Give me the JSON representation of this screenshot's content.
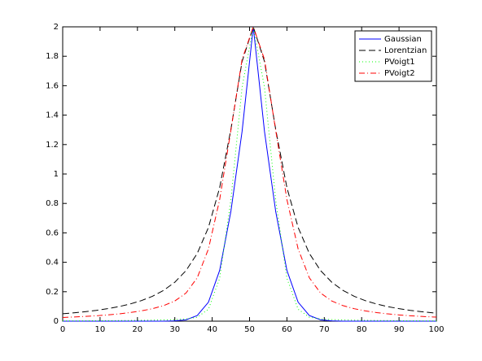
{
  "chart_data": {
    "type": "line",
    "x": [
      0,
      3,
      6,
      9,
      12,
      15,
      18,
      21,
      24,
      27,
      30,
      33,
      36,
      39,
      42,
      45,
      48,
      51,
      54,
      57,
      60,
      63,
      66,
      69,
      72,
      75,
      78,
      81,
      84,
      87,
      90,
      93,
      96,
      99,
      100
    ],
    "series": [
      {
        "name": "Gaussian",
        "color": "#0000ff",
        "dash": "",
        "values": [
          0,
          0,
          0,
          0,
          0,
          0,
          0,
          0,
          0,
          0.0003,
          0.0018,
          0.0092,
          0.0385,
          0.129,
          0.345,
          0.745,
          1.289,
          2,
          1.289,
          0.745,
          0.345,
          0.129,
          0.0385,
          0.0092,
          0.0018,
          0.0003,
          0,
          0,
          0,
          0,
          0,
          0,
          0,
          0,
          0
        ]
      },
      {
        "name": "Lorentzian",
        "color": "#000000",
        "dash": "8,4",
        "values": [
          0.0504,
          0.0567,
          0.0643,
          0.0734,
          0.0847,
          0.0987,
          0.1163,
          0.1391,
          0.1689,
          0.2091,
          0.2646,
          0.3437,
          0.4602,
          0.6365,
          0.9072,
          1.3026,
          1.764,
          2,
          1.764,
          1.3026,
          0.9072,
          0.6365,
          0.4602,
          0.3437,
          0.2646,
          0.2091,
          0.1689,
          0.1391,
          0.1163,
          0.0987,
          0.0847,
          0.0734,
          0.0643,
          0.0567,
          0.0545
        ]
      },
      {
        "name": "PVoigt1",
        "color": "#00ff00",
        "dash": "1,3",
        "values": [
          0.0019,
          0.0021,
          0.0024,
          0.0028,
          0.0032,
          0.0038,
          0.0045,
          0.0054,
          0.0066,
          0.0083,
          0.0107,
          0.0149,
          0.0269,
          0.081,
          0.2908,
          0.822,
          1.589,
          2,
          1.589,
          0.822,
          0.2908,
          0.081,
          0.0269,
          0.0149,
          0.0107,
          0.0083,
          0.0066,
          0.0054,
          0.0045,
          0.0038,
          0.0032,
          0.0028,
          0.0024,
          0.0021,
          0.0021
        ]
      },
      {
        "name": "PVoigt2",
        "color": "#ff0000",
        "dash": "7,3,1,3",
        "values": [
          0.0252,
          0.0284,
          0.0322,
          0.0367,
          0.0424,
          0.0494,
          0.0582,
          0.0696,
          0.0846,
          0.1055,
          0.1369,
          0.1911,
          0.2946,
          0.4908,
          0.8261,
          1.2958,
          1.778,
          2,
          1.778,
          1.2958,
          0.8261,
          0.4908,
          0.2946,
          0.1911,
          0.1369,
          0.1055,
          0.0846,
          0.0696,
          0.0582,
          0.0494,
          0.0424,
          0.0367,
          0.0322,
          0.0284,
          0.0273
        ]
      }
    ],
    "xlim": [
      0,
      100
    ],
    "xticks": [
      0,
      10,
      20,
      30,
      40,
      50,
      60,
      70,
      80,
      90,
      100
    ],
    "ylim": [
      0,
      2
    ],
    "yticks": [
      0,
      0.2,
      0.4,
      0.6,
      0.8,
      1,
      1.2,
      1.4,
      1.6,
      1.8,
      2
    ],
    "grid": false,
    "legend": "upper right"
  }
}
